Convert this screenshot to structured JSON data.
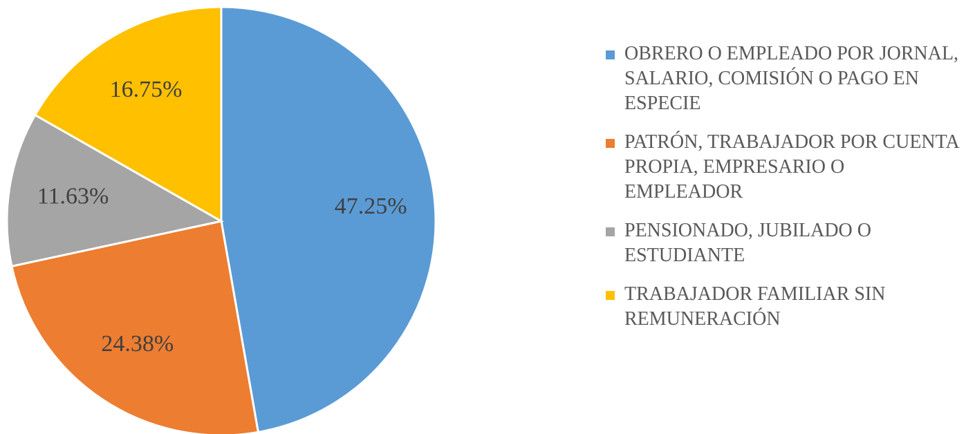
{
  "chart_data": {
    "type": "pie",
    "categories": [
      "OBRERO O EMPLEADO POR JORNAL, SALARIO, COMISIÓN O PAGO EN ESPECIE",
      "PATRÓN, TRABAJADOR POR CUENTA PROPIA, EMPRESARIO O EMPLEADOR",
      "PENSIONADO, JUBILADO O ESTUDIANTE",
      "TRABAJADOR FAMILIAR SIN REMUNERACIÓN"
    ],
    "values": [
      47.25,
      24.38,
      11.63,
      16.75
    ],
    "value_labels": [
      "47.25%",
      "24.38%",
      "11.63%",
      "16.75%"
    ],
    "colors": [
      "#5b9bd5",
      "#ed7d31",
      "#a5a5a5",
      "#ffc000"
    ],
    "legend": "right"
  }
}
